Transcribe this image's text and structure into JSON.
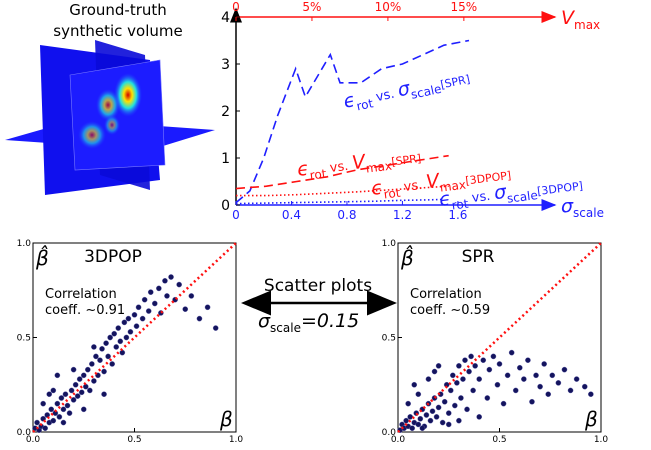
{
  "illustration": {
    "title": [
      "Ground-truth",
      "synthetic volume"
    ]
  },
  "connector": {
    "title": "Scatter plots",
    "parameter": [
      "σ",
      "scale",
      "=0.15"
    ]
  },
  "chart_data": [
    {
      "type": "line",
      "xlim": [
        0,
        2.3
      ],
      "xticks": [
        0,
        0.4,
        0.8,
        1.2,
        1.6
      ],
      "x2lim": [
        0,
        21
      ],
      "x2ticks": [
        0,
        {
          "value": 5,
          "label": "5%"
        },
        {
          "value": 10,
          "label": "10%"
        },
        {
          "value": 15,
          "label": "15%"
        }
      ],
      "ylim": [
        0,
        4
      ],
      "yticks": [
        0,
        1,
        2,
        3,
        4
      ],
      "xlabel": [
        "σ",
        "scale"
      ],
      "x2label": [
        "V",
        "max"
      ],
      "x_color": "#1f1fff",
      "x2_color": "#ff1010",
      "series": [
        {
          "label": [
            "ϵ",
            "rot",
            " vs. ",
            "σ",
            "scale",
            "[SPR]"
          ],
          "color": "#1f1fff",
          "style": "dashed",
          "axis": "x",
          "x": [
            0,
            0.1,
            0.2,
            0.3,
            0.43,
            0.5,
            0.68,
            0.75,
            0.9,
            1.05,
            1.2,
            1.35,
            1.5,
            1.68
          ],
          "values": [
            0.05,
            0.3,
            1.0,
            1.9,
            2.9,
            2.3,
            3.2,
            2.6,
            2.6,
            2.9,
            3.0,
            3.2,
            3.4,
            3.5
          ]
        },
        {
          "label": [
            "ϵ",
            "rot",
            " vs. ",
            "σ",
            "scale",
            "[3DPOP]"
          ],
          "color": "#1f1fff",
          "style": "dotted",
          "axis": "x",
          "x": [
            0,
            0.2,
            0.4,
            0.6,
            0.8,
            1.0,
            1.2,
            1.4,
            1.5
          ],
          "values": [
            0.03,
            0.04,
            0.05,
            0.06,
            0.07,
            0.08,
            0.1,
            0.11,
            0.12
          ]
        },
        {
          "label": [
            "ϵ",
            "rot",
            " vs. ",
            "V",
            "max",
            "[SPR]"
          ],
          "color": "#ff1010",
          "style": "dashed",
          "axis": "x2",
          "x": [
            0,
            2,
            4,
            6,
            8,
            10,
            12,
            14
          ],
          "values": [
            0.35,
            0.4,
            0.5,
            0.6,
            0.75,
            0.85,
            0.95,
            1.05
          ]
        },
        {
          "label": [
            "ϵ",
            "rot",
            " vs. ",
            "V",
            "max",
            "[3DPOP]"
          ],
          "color": "#ff1010",
          "style": "dotted",
          "axis": "x2",
          "x": [
            0,
            2,
            4,
            6,
            8,
            10,
            12,
            14
          ],
          "values": [
            0.2,
            0.2,
            0.22,
            0.25,
            0.28,
            0.32,
            0.36,
            0.4
          ]
        }
      ]
    },
    {
      "type": "scatter",
      "title": "3DPOP",
      "xlabel": "β",
      "ylabel": "β̂",
      "annotation": [
        "Correlation",
        "coeff. ~0.91"
      ],
      "color": "#14145e",
      "xlim": [
        0,
        1
      ],
      "ylim": [
        0,
        1
      ],
      "xticks": [
        {
          "value": 0,
          "label": "0.0"
        },
        0.5,
        {
          "value": 1,
          "label": "1.0"
        }
      ],
      "yticks": [
        {
          "value": 0,
          "label": "0.0"
        },
        0.5,
        {
          "value": 1,
          "label": "1.0"
        }
      ],
      "reference_line": {
        "x": [
          0,
          1
        ],
        "values": [
          0,
          1
        ],
        "color": "#ff1010"
      },
      "points": [
        [
          0.01,
          0.02
        ],
        [
          0.02,
          0.05
        ],
        [
          0.03,
          0.01
        ],
        [
          0.04,
          0.03
        ],
        [
          0.05,
          0.07
        ],
        [
          0.06,
          0.02
        ],
        [
          0.07,
          0.09
        ],
        [
          0.08,
          0.05
        ],
        [
          0.09,
          0.12
        ],
        [
          0.1,
          0.06
        ],
        [
          0.11,
          0.1
        ],
        [
          0.12,
          0.15
        ],
        [
          0.13,
          0.08
        ],
        [
          0.14,
          0.18
        ],
        [
          0.15,
          0.12
        ],
        [
          0.16,
          0.2
        ],
        [
          0.17,
          0.14
        ],
        [
          0.18,
          0.1
        ],
        [
          0.19,
          0.22
        ],
        [
          0.2,
          0.17
        ],
        [
          0.21,
          0.25
        ],
        [
          0.22,
          0.19
        ],
        [
          0.23,
          0.28
        ],
        [
          0.24,
          0.21
        ],
        [
          0.25,
          0.3
        ],
        [
          0.26,
          0.24
        ],
        [
          0.27,
          0.33
        ],
        [
          0.28,
          0.22
        ],
        [
          0.29,
          0.36
        ],
        [
          0.3,
          0.27
        ],
        [
          0.31,
          0.4
        ],
        [
          0.32,
          0.3
        ],
        [
          0.33,
          0.38
        ],
        [
          0.34,
          0.44
        ],
        [
          0.35,
          0.32
        ],
        [
          0.36,
          0.47
        ],
        [
          0.37,
          0.4
        ],
        [
          0.38,
          0.5
        ],
        [
          0.39,
          0.36
        ],
        [
          0.4,
          0.52
        ],
        [
          0.41,
          0.45
        ],
        [
          0.42,
          0.55
        ],
        [
          0.43,
          0.48
        ],
        [
          0.44,
          0.42
        ],
        [
          0.45,
          0.58
        ],
        [
          0.46,
          0.5
        ],
        [
          0.47,
          0.6
        ],
        [
          0.48,
          0.53
        ],
        [
          0.5,
          0.62
        ],
        [
          0.51,
          0.56
        ],
        [
          0.52,
          0.66
        ],
        [
          0.54,
          0.6
        ],
        [
          0.55,
          0.7
        ],
        [
          0.57,
          0.64
        ],
        [
          0.58,
          0.74
        ],
        [
          0.6,
          0.68
        ],
        [
          0.62,
          0.76
        ],
        [
          0.63,
          0.63
        ],
        [
          0.65,
          0.8
        ],
        [
          0.66,
          0.72
        ],
        [
          0.68,
          0.82
        ],
        [
          0.7,
          0.7
        ],
        [
          0.72,
          0.78
        ],
        [
          0.75,
          0.65
        ],
        [
          0.78,
          0.72
        ],
        [
          0.82,
          0.6
        ],
        [
          0.86,
          0.66
        ],
        [
          0.9,
          0.55
        ],
        [
          0.05,
          0.15
        ],
        [
          0.1,
          0.22
        ],
        [
          0.15,
          0.05
        ],
        [
          0.2,
          0.33
        ],
        [
          0.25,
          0.12
        ],
        [
          0.3,
          0.45
        ],
        [
          0.35,
          0.2
        ],
        [
          0.12,
          0.3
        ],
        [
          0.08,
          0.2
        ]
      ]
    },
    {
      "type": "scatter",
      "title": "SPR",
      "xlabel": "β",
      "ylabel": "β̂",
      "annotation": [
        "Correlation",
        "coeff. ~0.59"
      ],
      "color": "#14145e",
      "xlim": [
        0,
        1
      ],
      "ylim": [
        0,
        1
      ],
      "xticks": [
        {
          "value": 0,
          "label": "0.0"
        },
        0.5,
        {
          "value": 1,
          "label": "1.0"
        }
      ],
      "yticks": [
        {
          "value": 0,
          "label": "0.0"
        },
        0.5,
        {
          "value": 1,
          "label": "1.0"
        }
      ],
      "reference_line": {
        "x": [
          0,
          1
        ],
        "values": [
          0,
          1
        ],
        "color": "#ff1010"
      },
      "points": [
        [
          0.01,
          0.01
        ],
        [
          0.02,
          0.04
        ],
        [
          0.03,
          0.02
        ],
        [
          0.04,
          0.06
        ],
        [
          0.05,
          0.03
        ],
        [
          0.06,
          0.08
        ],
        [
          0.07,
          0.02
        ],
        [
          0.08,
          0.05
        ],
        [
          0.09,
          0.1
        ],
        [
          0.1,
          0.04
        ],
        [
          0.11,
          0.07
        ],
        [
          0.12,
          0.12
        ],
        [
          0.13,
          0.03
        ],
        [
          0.14,
          0.09
        ],
        [
          0.15,
          0.15
        ],
        [
          0.16,
          0.06
        ],
        [
          0.17,
          0.11
        ],
        [
          0.18,
          0.18
        ],
        [
          0.19,
          0.08
        ],
        [
          0.2,
          0.13
        ],
        [
          0.21,
          0.2
        ],
        [
          0.22,
          0.05
        ],
        [
          0.23,
          0.16
        ],
        [
          0.24,
          0.25
        ],
        [
          0.25,
          0.1
        ],
        [
          0.26,
          0.22
        ],
        [
          0.27,
          0.3
        ],
        [
          0.28,
          0.14
        ],
        [
          0.29,
          0.26
        ],
        [
          0.3,
          0.35
        ],
        [
          0.31,
          0.18
        ],
        [
          0.32,
          0.28
        ],
        [
          0.33,
          0.38
        ],
        [
          0.34,
          0.12
        ],
        [
          0.35,
          0.32
        ],
        [
          0.36,
          0.4
        ],
        [
          0.37,
          0.22
        ],
        [
          0.38,
          0.35
        ],
        [
          0.4,
          0.28
        ],
        [
          0.42,
          0.38
        ],
        [
          0.44,
          0.18
        ],
        [
          0.45,
          0.33
        ],
        [
          0.47,
          0.4
        ],
        [
          0.49,
          0.25
        ],
        [
          0.5,
          0.36
        ],
        [
          0.52,
          0.15
        ],
        [
          0.54,
          0.3
        ],
        [
          0.56,
          0.42
        ],
        [
          0.58,
          0.22
        ],
        [
          0.6,
          0.34
        ],
        [
          0.62,
          0.28
        ],
        [
          0.64,
          0.38
        ],
        [
          0.66,
          0.16
        ],
        [
          0.68,
          0.3
        ],
        [
          0.7,
          0.24
        ],
        [
          0.72,
          0.36
        ],
        [
          0.74,
          0.2
        ],
        [
          0.76,
          0.3
        ],
        [
          0.79,
          0.26
        ],
        [
          0.82,
          0.33
        ],
        [
          0.85,
          0.22
        ],
        [
          0.88,
          0.28
        ],
        [
          0.92,
          0.24
        ],
        [
          0.95,
          0.2
        ],
        [
          0.05,
          0.15
        ],
        [
          0.1,
          0.2
        ],
        [
          0.15,
          0.28
        ],
        [
          0.08,
          0.25
        ],
        [
          0.2,
          0.35
        ],
        [
          0.12,
          0.02
        ],
        [
          0.25,
          0.04
        ],
        [
          0.3,
          0.06
        ],
        [
          0.4,
          0.08
        ],
        [
          0.18,
          0.32
        ]
      ]
    }
  ]
}
